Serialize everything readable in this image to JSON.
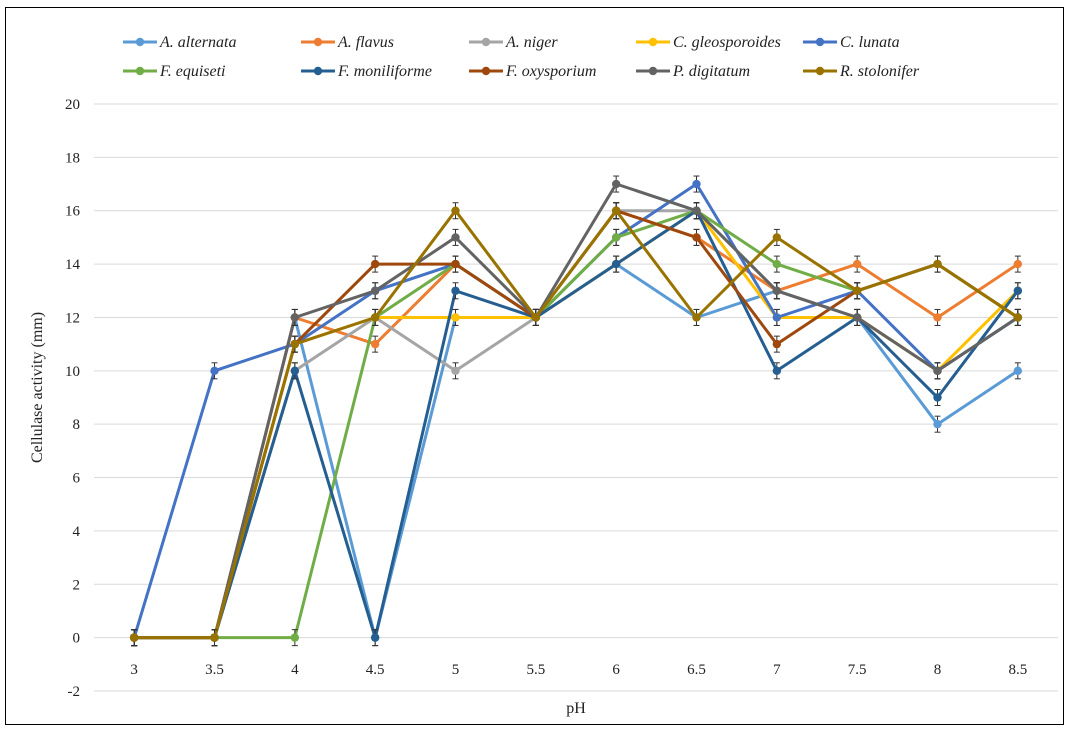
{
  "chart_data": {
    "type": "line",
    "xlabel": "pH",
    "ylabel": "Cellulase activity (mm)",
    "categories": [
      "3",
      "3.5",
      "4",
      "4.5",
      "5",
      "5.5",
      "6",
      "6.5",
      "7",
      "7.5",
      "8",
      "8.5"
    ],
    "ylim": [
      -2,
      20
    ],
    "yticks": [
      -2,
      0,
      2,
      4,
      6,
      8,
      10,
      12,
      14,
      16,
      18,
      20
    ],
    "grid": true,
    "error_bar": 0.3,
    "legend_position": "top",
    "series": [
      {
        "name": "A. alternata",
        "color": "#5B9BD5",
        "values": [
          0,
          0,
          12,
          0,
          12,
          12,
          14,
          12,
          13,
          12,
          8,
          10
        ]
      },
      {
        "name": "A. flavus",
        "color": "#ED7D31",
        "values": [
          0,
          0,
          12,
          11,
          14,
          12,
          16,
          15,
          13,
          14,
          12,
          14
        ]
      },
      {
        "name": "A. niger",
        "color": "#A5A5A5",
        "values": [
          0,
          0,
          10,
          12,
          10,
          12,
          16,
          16,
          13,
          12,
          10,
          12
        ]
      },
      {
        "name": "C. gleosporoides",
        "color": "#FFC000",
        "values": [
          0,
          0,
          11,
          12,
          12,
          12,
          14,
          16,
          12,
          12,
          10,
          13
        ]
      },
      {
        "name": "C. lunata",
        "color": "#4472C4",
        "values": [
          0,
          10,
          11,
          13,
          14,
          12,
          15,
          17,
          12,
          13,
          10,
          12
        ]
      },
      {
        "name": "F. equiseti",
        "color": "#70AD47",
        "values": [
          0,
          0,
          0,
          12,
          14,
          12,
          15,
          16,
          14,
          13,
          14,
          12
        ]
      },
      {
        "name": "F. moniliforme",
        "color": "#255E91",
        "values": [
          0,
          0,
          10,
          0,
          13,
          12,
          14,
          16,
          10,
          12,
          9,
          13
        ]
      },
      {
        "name": "F. oxysporium",
        "color": "#9E480E",
        "values": [
          0,
          0,
          11,
          14,
          14,
          12,
          16,
          15,
          11,
          13,
          14,
          12
        ]
      },
      {
        "name": "P. digitatum",
        "color": "#636363",
        "values": [
          0,
          0,
          12,
          13,
          15,
          12,
          17,
          16,
          13,
          12,
          10,
          12
        ]
      },
      {
        "name": "R. stolonifer",
        "color": "#997300",
        "values": [
          0,
          0,
          11,
          12,
          16,
          12,
          16,
          12,
          15,
          13,
          14,
          12
        ]
      }
    ]
  }
}
